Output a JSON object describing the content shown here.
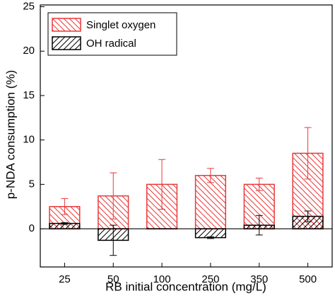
{
  "chart_data": {
    "type": "bar",
    "x_label": "RB initial concentration (mg/L)",
    "y_label": "p-NDA consumption (%)",
    "categories": [
      "25",
      "50",
      "100",
      "250",
      "350",
      "500"
    ],
    "series": [
      {
        "name": "Singlet oxygen",
        "color": "#e8393a",
        "values": [
          2.5,
          3.7,
          5.0,
          6.0,
          5.0,
          8.5
        ],
        "errors": [
          0.9,
          2.6,
          2.8,
          0.8,
          0.7,
          2.9
        ]
      },
      {
        "name": "OH radical",
        "color": "#000000",
        "values": [
          0.6,
          -1.3,
          0.0,
          -1.0,
          0.4,
          1.4
        ],
        "errors": [
          0.1,
          1.7,
          0.0,
          0.1,
          1.1,
          0.6
        ]
      }
    ],
    "ylim": [
      -4.3,
      25.2
    ],
    "yticks": [
      0,
      5,
      10,
      15,
      20,
      25
    ],
    "legend": "upper left"
  }
}
